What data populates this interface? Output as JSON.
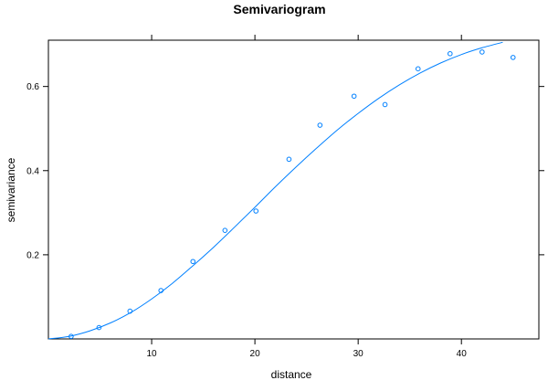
{
  "chart_data": {
    "type": "scatter",
    "title": "Semivariogram",
    "xlabel": "distance",
    "ylabel": "semivariance",
    "xlim": [
      0,
      47.5
    ],
    "ylim": [
      0,
      0.71
    ],
    "xticks": [
      10,
      20,
      30,
      40
    ],
    "yticks": [
      0.2,
      0.4,
      0.6
    ],
    "xtick_labels": [
      "10",
      "20",
      "30",
      "40"
    ],
    "ytick_labels": [
      "0.2",
      "0.4",
      "0.6"
    ],
    "grid": false,
    "legend": "none",
    "series": [
      {
        "kind": "points",
        "x": [
          2.2,
          4.9,
          7.9,
          10.9,
          14.0,
          17.1,
          20.1,
          23.3,
          26.3,
          29.6,
          32.6,
          35.8,
          38.9,
          42.0,
          45.0
        ],
        "y": [
          0.006,
          0.027,
          0.066,
          0.115,
          0.184,
          0.258,
          0.304,
          0.427,
          0.508,
          0.577,
          0.557,
          0.642,
          0.678,
          0.682,
          0.669
        ]
      },
      {
        "kind": "line",
        "x": [
          0,
          2,
          4,
          6,
          8,
          10,
          12,
          14,
          16,
          18,
          20,
          22,
          24,
          26,
          28,
          30,
          32,
          34,
          36,
          38,
          40,
          42,
          44
        ],
        "y": [
          0.0,
          0.006,
          0.019,
          0.038,
          0.063,
          0.095,
          0.132,
          0.174,
          0.218,
          0.265,
          0.313,
          0.362,
          0.409,
          0.454,
          0.497,
          0.536,
          0.572,
          0.604,
          0.632,
          0.656,
          0.676,
          0.692,
          0.705
        ]
      }
    ],
    "colors": {
      "series": "#0080ff",
      "axes": "#000000"
    }
  }
}
